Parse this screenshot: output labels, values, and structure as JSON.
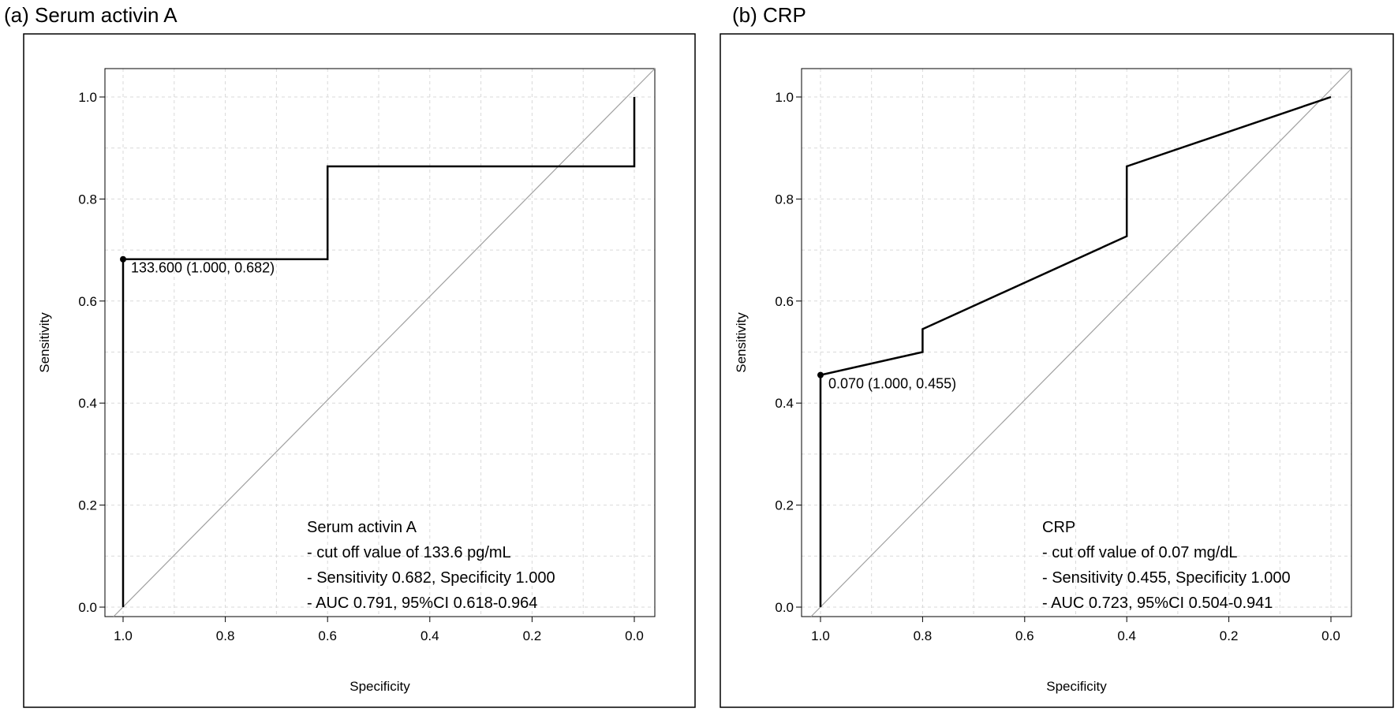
{
  "chart_data": [
    {
      "type": "line",
      "panel_title": "(a) Serum activin A",
      "xlabel": "Specificity",
      "ylabel": "Sensitivity",
      "x_reversed": true,
      "xlim": [
        1.0,
        0.0
      ],
      "ylim": [
        0.0,
        1.0
      ],
      "xticks": [
        "1.0",
        "0.8",
        "0.6",
        "0.4",
        "0.2",
        "0.0"
      ],
      "yticks": [
        "0.0",
        "0.2",
        "0.4",
        "0.6",
        "0.8",
        "1.0"
      ],
      "grid": true,
      "reference_line": true,
      "roc_curve": [
        [
          1.0,
          0.0
        ],
        [
          1.0,
          0.682
        ],
        [
          0.6,
          0.682
        ],
        [
          0.6,
          0.864
        ],
        [
          0.0,
          0.864
        ],
        [
          0.0,
          1.0
        ]
      ],
      "cutoff_point": {
        "specificity": 1.0,
        "sensitivity": 0.682,
        "label": "133.600 (1.000, 0.682)"
      },
      "legend": [
        "Serum activin A",
        "- cut off value of 133.6 pg/mL",
        "- Sensitivity 0.682, Specificity 1.000",
        "- AUC 0.791, 95%CI 0.618-0.964"
      ],
      "legend_position": "bottom-right"
    },
    {
      "type": "line",
      "panel_title": "(b) CRP",
      "xlabel": "Specificity",
      "ylabel": "Sensitivity",
      "x_reversed": true,
      "xlim": [
        1.0,
        0.0
      ],
      "ylim": [
        0.0,
        1.0
      ],
      "xticks": [
        "1.0",
        "0.8",
        "0.6",
        "0.4",
        "0.2",
        "0.0"
      ],
      "yticks": [
        "0.0",
        "0.2",
        "0.4",
        "0.6",
        "0.8",
        "1.0"
      ],
      "grid": true,
      "reference_line": true,
      "roc_curve": [
        [
          1.0,
          0.0
        ],
        [
          1.0,
          0.455
        ],
        [
          0.8,
          0.5
        ],
        [
          0.8,
          0.545
        ],
        [
          0.4,
          0.727
        ],
        [
          0.4,
          0.864
        ],
        [
          0.0,
          1.0
        ]
      ],
      "cutoff_point": {
        "specificity": 1.0,
        "sensitivity": 0.455,
        "label": "0.070 (1.000, 0.455)"
      },
      "legend": [
        "CRP",
        "- cut off value of 0.07 mg/dL",
        "- Sensitivity 0.455, Specificity 1.000",
        "- AUC 0.723, 95%CI 0.504-0.941"
      ],
      "legend_position": "bottom-right"
    }
  ]
}
